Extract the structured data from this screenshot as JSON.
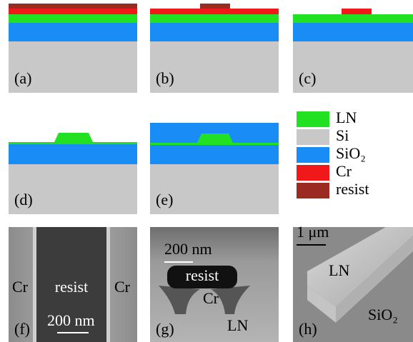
{
  "panels": [
    {
      "label": "(a)"
    },
    {
      "label": "(b)"
    },
    {
      "label": "(c)"
    },
    {
      "label": "(d)"
    },
    {
      "label": "(e)"
    }
  ],
  "legend": [
    "LN",
    "Si",
    "SiO₂",
    "Cr",
    "resist"
  ],
  "sem": [
    {
      "label": "(f)",
      "texts": [
        "Cr",
        "resist",
        "Cr"
      ],
      "scale": "200 nm"
    },
    {
      "label": "(g)",
      "texts": [
        "resist",
        "Cr",
        "LN"
      ],
      "scale": "200 nm"
    },
    {
      "label": "(h)",
      "texts": [
        "LN",
        "SiO₂"
      ],
      "scale": "1 μm"
    }
  ]
}
